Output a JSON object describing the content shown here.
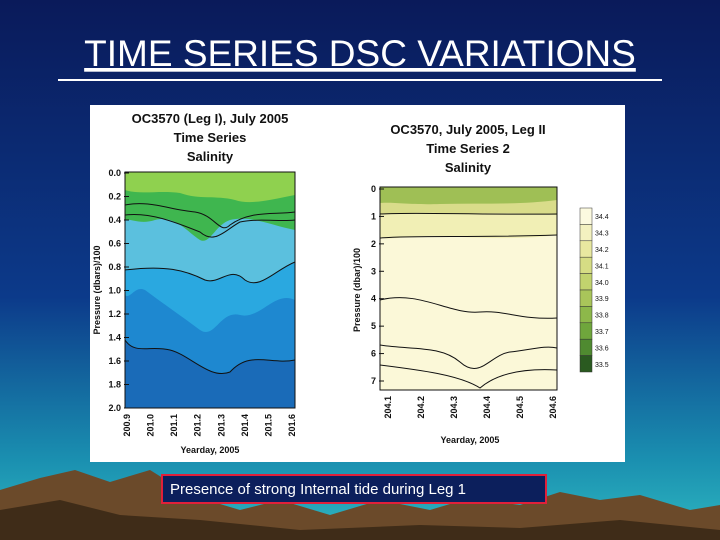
{
  "title": "TIME SERIES DSC VARIATIONS",
  "left_plot": {
    "title_lines": [
      "OC3570 (Leg I), July 2005",
      "Time Series",
      "Salinity"
    ],
    "y_label": "Pressure (dbars)/100",
    "x_label": "Yearday, 2005",
    "y_ticks": [
      "0.0",
      "0.2",
      "0.4",
      "0.6",
      "0.8",
      "1.0",
      "1.2",
      "1.4",
      "1.6",
      "1.8",
      "2.0"
    ],
    "x_ticks": [
      "200.9",
      "201.0",
      "201.1",
      "201.2",
      "201.3",
      "201.4",
      "201.5",
      "201.6"
    ]
  },
  "right_plot": {
    "title_lines": [
      "OC3570, July 2005, Leg II",
      "Time Series 2",
      "Salinity"
    ],
    "y_label": "Pressure (dbar)/100",
    "x_label": "Yearday, 2005",
    "y_ticks": [
      "0",
      "1",
      "2",
      "3",
      "4",
      "5",
      "6",
      "7"
    ],
    "x_ticks": [
      "204.1",
      "204.2",
      "204.3",
      "204.4",
      "204.5",
      "204.6"
    ],
    "colorbar": [
      "34.4",
      "34.3",
      "34.2",
      "34.1",
      "34.0",
      "33.9",
      "33.8",
      "33.7",
      "33.6",
      "33.5"
    ]
  },
  "caption": "Presence of strong Internal tide during Leg 1"
}
